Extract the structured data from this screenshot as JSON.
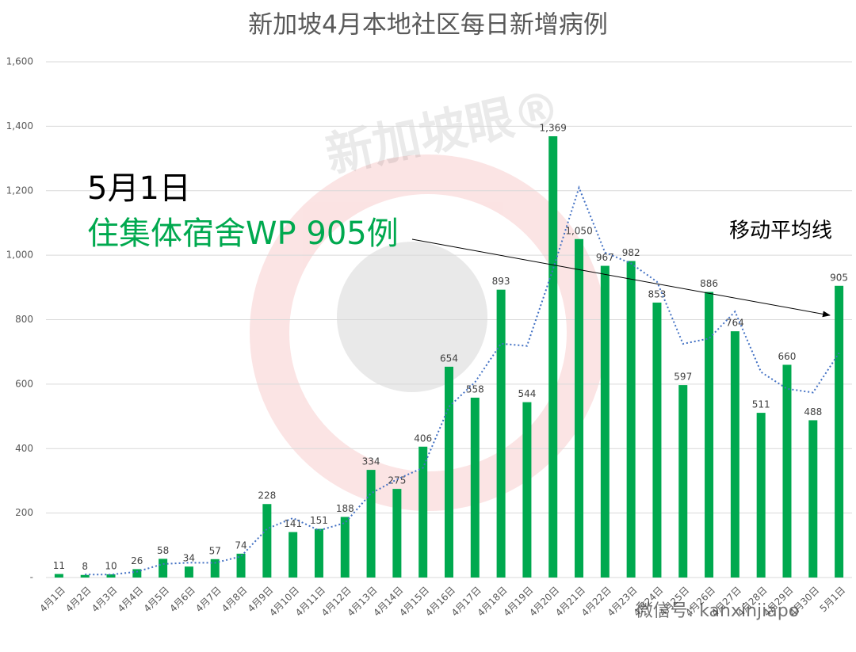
{
  "chart_data": {
    "type": "bar",
    "title": "新加坡4月本地社区每日新增病例",
    "categories": [
      "4月1日",
      "4月2日",
      "4月3日",
      "4月4日",
      "4月5日",
      "4月6日",
      "4月7日",
      "4月8日",
      "4月9日",
      "4月10日",
      "4月11日",
      "4月12日",
      "4月13日",
      "4月14日",
      "4月15日",
      "4月16日",
      "4月17日",
      "4月18日",
      "4月19日",
      "4月20日",
      "4月21日",
      "4月22日",
      "4月23日",
      "4月24日",
      "4月25日",
      "4月26日",
      "4月27日",
      "4月28日",
      "4月29日",
      "4月30日",
      "5月1日"
    ],
    "values": [
      11,
      8,
      10,
      26,
      58,
      34,
      57,
      74,
      228,
      141,
      151,
      188,
      334,
      275,
      406,
      654,
      558,
      893,
      544,
      1369,
      1050,
      967,
      982,
      853,
      597,
      886,
      764,
      511,
      660,
      488,
      905
    ],
    "value_labels": [
      "11",
      "8",
      "10",
      "26",
      "58",
      "34",
      "57",
      "74",
      "228",
      "141",
      "151",
      "188",
      "334",
      "275",
      "406",
      "654",
      "558",
      "893",
      "544",
      "1,369",
      "1,050",
      "967",
      "982",
      "853",
      "597",
      "886",
      "764",
      "511",
      "660",
      "488",
      "905"
    ],
    "color": "#00a94f",
    "trendline": {
      "name": "移动平均线",
      "color": "#4472c4",
      "values": [
        null,
        9.5,
        9,
        18,
        42,
        46,
        45.5,
        65.5,
        151,
        184.5,
        146,
        169.5,
        261,
        304.5,
        340.5,
        530,
        606,
        725.5,
        718.5,
        956.5,
        1209.5,
        1008.5,
        974.5,
        917.5,
        725,
        741.5,
        825,
        637.5,
        585.5,
        574,
        696.5
      ]
    },
    "ylim": [
      0,
      1600
    ],
    "yticks": [
      {
        "value": 0,
        "label": "-"
      },
      200,
      400,
      600,
      800,
      {
        "value": 1000,
        "label": "1,000"
      },
      {
        "value": 1200,
        "label": "1,200"
      },
      {
        "value": 1400,
        "label": "1,400"
      },
      {
        "value": 1600,
        "label": "1,600"
      }
    ],
    "grid": true,
    "annotations": [
      "5月1日",
      "住集体宿舍WP 905例"
    ],
    "watermarks": [
      "新加坡眼®",
      "微信号: kanxinjiapo"
    ]
  }
}
